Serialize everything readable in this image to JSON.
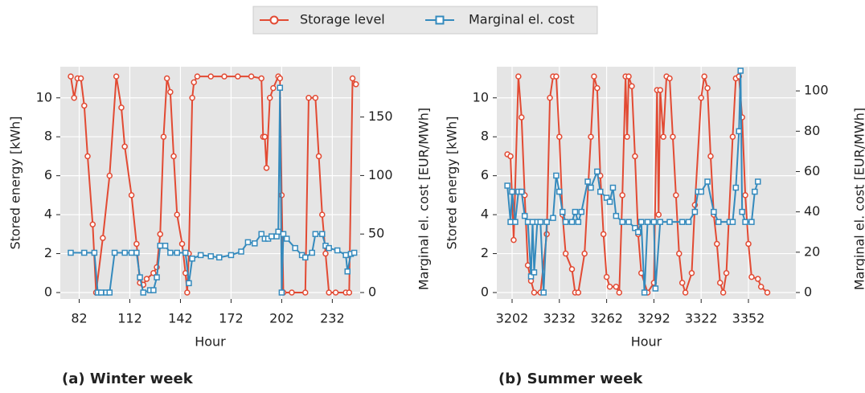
{
  "chart_data": [
    {
      "type": "line",
      "title": "(a) Winter week",
      "x_label": "Hour",
      "y_label": "Stored energy [kWh]",
      "y2_label": "Marginal el. cost [EUR/MWh]",
      "xlim": [
        70.8,
        248.5
      ],
      "xticks": [
        82,
        112,
        142,
        172,
        202,
        232
      ],
      "ylim": [
        -0.33,
        11.6
      ],
      "yticks": [
        0,
        2,
        4,
        6,
        8,
        10
      ],
      "y2lim": [
        -5.5,
        193
      ],
      "y2ticks": [
        0,
        50,
        100,
        150
      ],
      "grid": true,
      "series": [
        {
          "name": "Storage level",
          "color": "#E24A33",
          "marker": "circle",
          "x": [
            77,
            79,
            81,
            83,
            85,
            87,
            90,
            92,
            96,
            100,
            104,
            107,
            109,
            113,
            116,
            118,
            120,
            122,
            126,
            128,
            130,
            132,
            134,
            136,
            138,
            140,
            143,
            145,
            146,
            147,
            149,
            150,
            152,
            160,
            168,
            176,
            184,
            190,
            191,
            192,
            193,
            195,
            197,
            200,
            201,
            202,
            203,
            208,
            216,
            218,
            222,
            224,
            226,
            228,
            230,
            234,
            240,
            242,
            244,
            246
          ],
          "values": [
            11.1,
            10,
            11,
            11,
            9.6,
            7,
            3.5,
            0,
            2.8,
            6,
            11.1,
            9.5,
            7.5,
            5,
            2.5,
            0.5,
            0.4,
            0.7,
            1,
            1.3,
            3,
            8,
            11,
            10.3,
            7,
            4,
            2.5,
            1,
            0,
            2,
            10,
            10.8,
            11.1,
            11.1,
            11.1,
            11.1,
            11.1,
            11,
            8,
            8,
            6.4,
            10,
            10.5,
            11.1,
            11,
            5,
            0,
            0,
            0,
            10,
            10,
            7,
            4,
            2,
            0,
            0,
            0,
            0,
            11,
            10.7
          ]
        },
        {
          "name": "Marginal el. cost",
          "color": "#348ABD",
          "marker": "square",
          "axis": "y2",
          "x": [
            77,
            85,
            91,
            93,
            95,
            98,
            100,
            103,
            109,
            113,
            116,
            118,
            120,
            124,
            126,
            128,
            130,
            133,
            136,
            140,
            145,
            147,
            149,
            154,
            160,
            165,
            172,
            178,
            182,
            186,
            190,
            192,
            194,
            196,
            199,
            200,
            201,
            202,
            203,
            205,
            210,
            214,
            216,
            220,
            222,
            226,
            228,
            230,
            235,
            240,
            241,
            243,
            245
          ],
          "values": [
            34,
            34,
            34,
            0,
            0,
            0,
            0,
            34,
            34,
            34,
            34,
            13,
            0,
            2,
            2,
            13,
            40,
            40,
            34,
            34,
            34,
            8,
            29,
            32,
            31,
            30,
            32,
            35,
            43,
            42,
            50,
            46,
            46,
            48,
            48,
            52,
            175,
            0,
            50,
            46,
            38,
            32,
            30,
            34,
            50,
            50,
            40,
            38,
            36,
            32,
            18,
            33,
            34
          ]
        }
      ]
    },
    {
      "type": "line",
      "title": "(b) Summer week",
      "x_label": "Hour",
      "y_label": "Stored energy [kWh]",
      "y2_label": "Marginal el. cost [EUR/MWh]",
      "xlim": [
        3192.3,
        3382.1
      ],
      "xticks": [
        3202,
        3232,
        3262,
        3292,
        3322,
        3352
      ],
      "ylim": [
        -0.33,
        11.6
      ],
      "yticks": [
        0,
        2,
        4,
        6,
        8,
        10
      ],
      "y2lim": [
        -3.2,
        112
      ],
      "y2ticks": [
        0,
        20,
        40,
        60,
        80,
        100
      ],
      "grid": true,
      "series": [
        {
          "name": "Storage level",
          "color": "#E24A33",
          "marker": "circle",
          "x": [
            3199,
            3201,
            3203,
            3206,
            3208,
            3210,
            3212,
            3214,
            3216,
            3220,
            3224,
            3226,
            3228,
            3230,
            3232,
            3234,
            3236,
            3240,
            3242,
            3244,
            3248,
            3252,
            3254,
            3256,
            3258,
            3260,
            3262,
            3264,
            3268,
            3270,
            3272,
            3274,
            3275,
            3276,
            3278,
            3280,
            3282,
            3284,
            3288,
            3292,
            3294,
            3295,
            3296,
            3298,
            3300,
            3302,
            3304,
            3306,
            3308,
            3310,
            3312,
            3316,
            3318,
            3322,
            3324,
            3326,
            3328,
            3330,
            3332,
            3334,
            3336,
            3338,
            3342,
            3344,
            3346,
            3348,
            3350,
            3352,
            3354,
            3358,
            3360,
            3364
          ],
          "values": [
            7.1,
            7,
            2.7,
            11.1,
            9,
            5,
            1.4,
            0.6,
            0,
            0,
            3,
            10,
            11.1,
            11.1,
            8,
            4,
            2,
            1.2,
            0,
            0,
            2,
            8,
            11.1,
            10.5,
            6,
            3,
            0.8,
            0.3,
            0.3,
            0,
            5,
            11.1,
            8,
            11.1,
            10.6,
            7,
            3,
            1,
            0,
            0.5,
            10.4,
            4,
            10.4,
            8,
            11.1,
            11,
            8,
            5,
            2,
            0.5,
            0,
            1,
            4.5,
            10,
            11.1,
            10.5,
            7,
            4,
            2.5,
            0.5,
            0,
            1,
            8,
            11,
            11.1,
            9,
            5,
            2.5,
            0.8,
            0.7,
            0.3,
            0
          ]
        },
        {
          "name": "Marginal el. cost",
          "color": "#348ABD",
          "marker": "square",
          "axis": "y2",
          "x": [
            3199,
            3201,
            3202,
            3204,
            3206,
            3208,
            3210,
            3212,
            3214,
            3215,
            3216,
            3218,
            3220,
            3222,
            3224,
            3228,
            3230,
            3232,
            3234,
            3236,
            3240,
            3242,
            3244,
            3246,
            3250,
            3252,
            3256,
            3258,
            3262,
            3264,
            3266,
            3268,
            3272,
            3276,
            3280,
            3282,
            3284,
            3286,
            3288,
            3292,
            3293,
            3296,
            3302,
            3310,
            3314,
            3318,
            3320,
            3322,
            3326,
            3330,
            3333,
            3340,
            3342,
            3344,
            3346,
            3347,
            3348,
            3350,
            3354,
            3356,
            3358
          ],
          "values": [
            53,
            35,
            50,
            35,
            50,
            50,
            38,
            35,
            8,
            35,
            10,
            35,
            35,
            0,
            35,
            37,
            58,
            50,
            40,
            35,
            35,
            40,
            35,
            40,
            55,
            52,
            60,
            50,
            47,
            45,
            52,
            38,
            35,
            35,
            32,
            30,
            35,
            0,
            35,
            35,
            2,
            35,
            35,
            35,
            35,
            40,
            50,
            50,
            55,
            40,
            35,
            35,
            35,
            52,
            80,
            110,
            40,
            35,
            35,
            50,
            55
          ]
        }
      ]
    }
  ]
}
